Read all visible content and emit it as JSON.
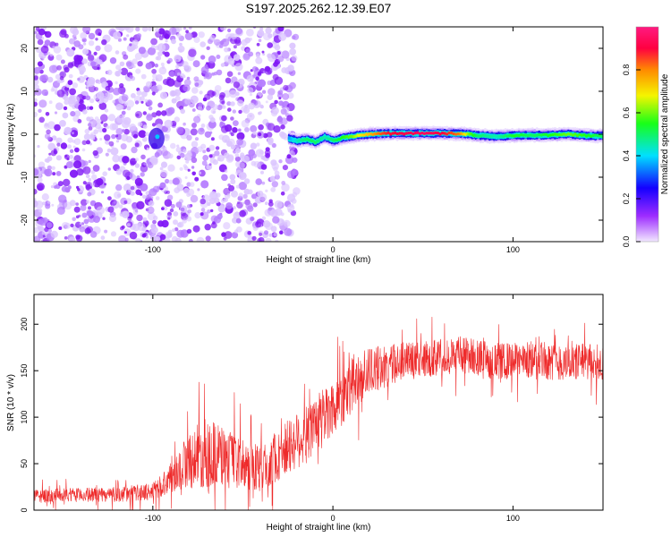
{
  "chart_data": [
    {
      "type": "heatmap",
      "title": "S197.2025.262.12.39.E07",
      "xlabel": "Height of straight line (km)",
      "ylabel": "Frequency (Hz)",
      "xlim": [
        -166,
        150
      ],
      "ylim": [
        -25,
        25
      ],
      "x_ticks": [
        -100,
        0,
        100
      ],
      "x_tick_labels": [
        "-100",
        "0",
        "100"
      ],
      "y_ticks": [
        -20,
        -10,
        0,
        10,
        20
      ],
      "y_tick_labels": [
        "-20",
        "-10",
        "0",
        "10",
        "20"
      ],
      "colorbar": {
        "label": "Normalized spectral amplitude",
        "range": [
          0,
          1
        ],
        "ticks": [
          0,
          0.2,
          0.4,
          0.6,
          0.8
        ],
        "tick_labels": [
          "0.0",
          "0.2",
          "0.4",
          "0.6",
          "0.8"
        ],
        "colors": [
          "#f2e8ff",
          "#9d2cff",
          "#1400ff",
          "#00e0ff",
          "#18ff18",
          "#f5f500",
          "#ff8a00",
          "#ff0040",
          "#ff1a80"
        ]
      },
      "noise_region": {
        "x_range": [
          -166,
          -25
        ],
        "freq_range": [
          -25,
          25
        ],
        "level": 0.15
      },
      "hotspot": {
        "x": -98,
        "freq": -1,
        "level": 0.35
      },
      "signal_ridge": [
        {
          "x": -25,
          "freq": -1.0,
          "amp": 0.35
        },
        {
          "x": -20,
          "freq": -1.5,
          "amp": 0.45
        },
        {
          "x": -15,
          "freq": -1.2,
          "amp": 0.5
        },
        {
          "x": -10,
          "freq": -1.8,
          "amp": 0.5
        },
        {
          "x": -5,
          "freq": -0.6,
          "amp": 0.45
        },
        {
          "x": 0,
          "freq": -1.5,
          "amp": 0.5
        },
        {
          "x": 5,
          "freq": -0.8,
          "amp": 0.55
        },
        {
          "x": 10,
          "freq": -0.5,
          "amp": 0.6
        },
        {
          "x": 15,
          "freq": -0.2,
          "amp": 0.7
        },
        {
          "x": 20,
          "freq": 0.0,
          "amp": 0.75
        },
        {
          "x": 25,
          "freq": 0.1,
          "amp": 0.82
        },
        {
          "x": 30,
          "freq": 0.2,
          "amp": 0.88
        },
        {
          "x": 40,
          "freq": 0.2,
          "amp": 0.92
        },
        {
          "x": 50,
          "freq": 0.2,
          "amp": 0.95
        },
        {
          "x": 60,
          "freq": 0.2,
          "amp": 0.9
        },
        {
          "x": 70,
          "freq": 0.1,
          "amp": 0.8
        },
        {
          "x": 75,
          "freq": 0.0,
          "amp": 0.6
        },
        {
          "x": 80,
          "freq": -0.3,
          "amp": 0.5
        },
        {
          "x": 90,
          "freq": -0.5,
          "amp": 0.45
        },
        {
          "x": 100,
          "freq": -0.3,
          "amp": 0.55
        },
        {
          "x": 110,
          "freq": -0.2,
          "amp": 0.5
        },
        {
          "x": 120,
          "freq": -0.2,
          "amp": 0.55
        },
        {
          "x": 130,
          "freq": 0.0,
          "amp": 0.6
        },
        {
          "x": 140,
          "freq": -0.3,
          "amp": 0.55
        },
        {
          "x": 150,
          "freq": -0.4,
          "amp": 0.5
        }
      ]
    },
    {
      "type": "line",
      "xlabel": "Height of straight line (km)",
      "ylabel": "SNR (10 * v/v)",
      "xlim": [
        -166,
        150
      ],
      "ylim": [
        0,
        232
      ],
      "x_ticks": [
        -100,
        0,
        100
      ],
      "x_tick_labels": [
        "-100",
        "0",
        "100"
      ],
      "y_ticks": [
        0,
        50,
        100,
        150,
        200
      ],
      "y_tick_labels": [
        "0",
        "50",
        "100",
        "150",
        "200"
      ],
      "series": [
        {
          "name": "SNR",
          "color": "#ee2a2a",
          "envelope": {
            "x": [
              -166,
              -150,
              -120,
              -100,
              -90,
              -80,
              -70,
              -60,
              -50,
              -40,
              -30,
              -20,
              -10,
              0,
              10,
              20,
              30,
              40,
              50,
              60,
              70,
              80,
              90,
              100,
              110,
              120,
              130,
              140,
              150
            ],
            "mean": [
              15,
              16,
              17,
              20,
              35,
              55,
              62,
              57,
              48,
              45,
              60,
              75,
              90,
              110,
              135,
              150,
              155,
              160,
              162,
              165,
              168,
              165,
              160,
              160,
              162,
              160,
              158,
              160,
              158
            ],
            "spread": [
              8,
              8,
              9,
              10,
              18,
              35,
              42,
              38,
              30,
              28,
              32,
              35,
              35,
              35,
              35,
              28,
              25,
              22,
              22,
              22,
              22,
              22,
              22,
              22,
              22,
              22,
              22,
              22,
              22
            ]
          }
        }
      ]
    }
  ]
}
